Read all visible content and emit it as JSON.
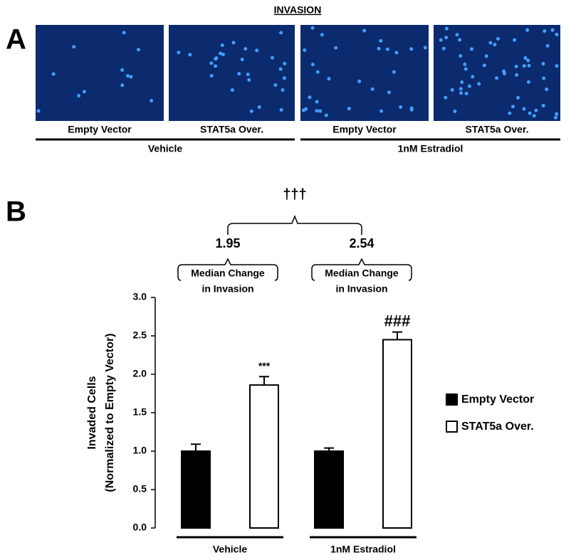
{
  "panel_a": {
    "panel_label": "A",
    "title": "INVASION",
    "images": [
      "Empty Vector",
      "STAT5a Over.",
      "Empty Vector",
      "STAT5a Over."
    ],
    "groups": [
      "Vehicle",
      "1nM Estradiol"
    ]
  },
  "chart_data": {
    "type": "bar",
    "panel_label": "B",
    "ylabel": [
      "Invaded Cells",
      "(Normalized to Empty Vector)"
    ],
    "categories": [
      "Vehicle",
      "1nM Estradiol"
    ],
    "series": [
      {
        "name": "Empty Vector",
        "color": "#000000",
        "values": [
          1.0,
          1.0
        ],
        "errors": [
          0.09,
          0.04
        ]
      },
      {
        "name": "STAT5a Over.",
        "color": "#ffffff",
        "values": [
          1.86,
          2.45
        ],
        "errors": [
          0.11,
          0.1
        ],
        "annotations": [
          "***",
          "###"
        ]
      }
    ],
    "ylim": [
      0,
      3
    ],
    "yticks": [
      {
        "value": 0,
        "label": "0.0"
      },
      0.5,
      {
        "value": 1,
        "label": "1.0"
      },
      1.5,
      {
        "value": 2,
        "label": "2.0"
      },
      2.5,
      {
        "value": 3,
        "label": "3.0"
      }
    ],
    "group_notes": [
      {
        "value": 1.95,
        "lines": [
          "Median Change",
          "in Invasion"
        ]
      },
      {
        "value": 2.54,
        "lines": [
          "Median Change",
          "in Invasion"
        ]
      }
    ],
    "comparison": "†††",
    "legend": "right"
  }
}
